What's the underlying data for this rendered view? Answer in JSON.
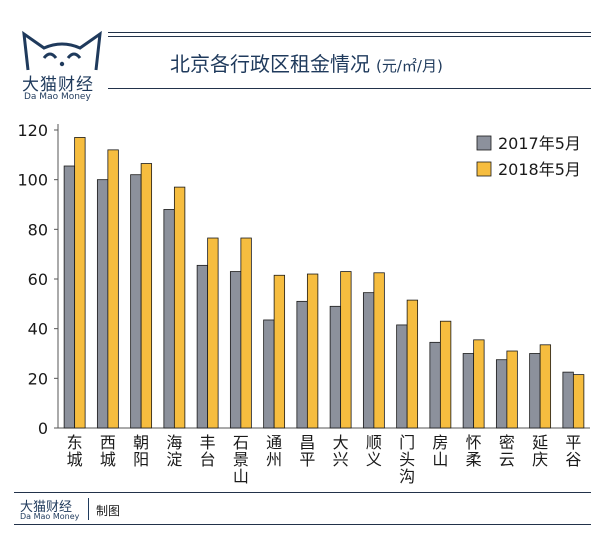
{
  "header": {
    "brand_cn": "大猫财经",
    "brand_en": "Da Mao Money",
    "title": "北京各行政区租金情况",
    "title_unit": "(元/㎡/月)"
  },
  "footer": {
    "brand_cn": "大猫财经",
    "brand_en": "Da Mao Money",
    "text": "制图"
  },
  "colors": {
    "series_2017": "#8c919c",
    "series_2018": "#f6bd3f",
    "text": "#1f3a5c"
  },
  "chart_data": {
    "type": "bar",
    "title": "北京各行政区租金情况",
    "ylim": [
      0,
      120
    ],
    "yticks": [
      0,
      20,
      40,
      60,
      80,
      100,
      120
    ],
    "grid": false,
    "legend": "top-right",
    "categories": [
      "东城",
      "西城",
      "朝阳",
      "海淀",
      "丰台",
      "石景山",
      "通州",
      "昌平",
      "大兴",
      "顺义",
      "门头沟",
      "房山",
      "怀柔",
      "密云",
      "延庆",
      "平谷"
    ],
    "series": [
      {
        "name": "2017年5月",
        "values": [
          105.5,
          100,
          102,
          88,
          65.5,
          63,
          43.5,
          51,
          49,
          54.5,
          41.5,
          34.5,
          30,
          27.5,
          30,
          22.5
        ]
      },
      {
        "name": "2018年5月",
        "values": [
          117,
          112,
          106.5,
          97,
          76.5,
          76.5,
          61.5,
          62,
          63,
          62.5,
          51.5,
          43,
          35.5,
          31,
          33.5,
          21.5
        ]
      }
    ]
  }
}
